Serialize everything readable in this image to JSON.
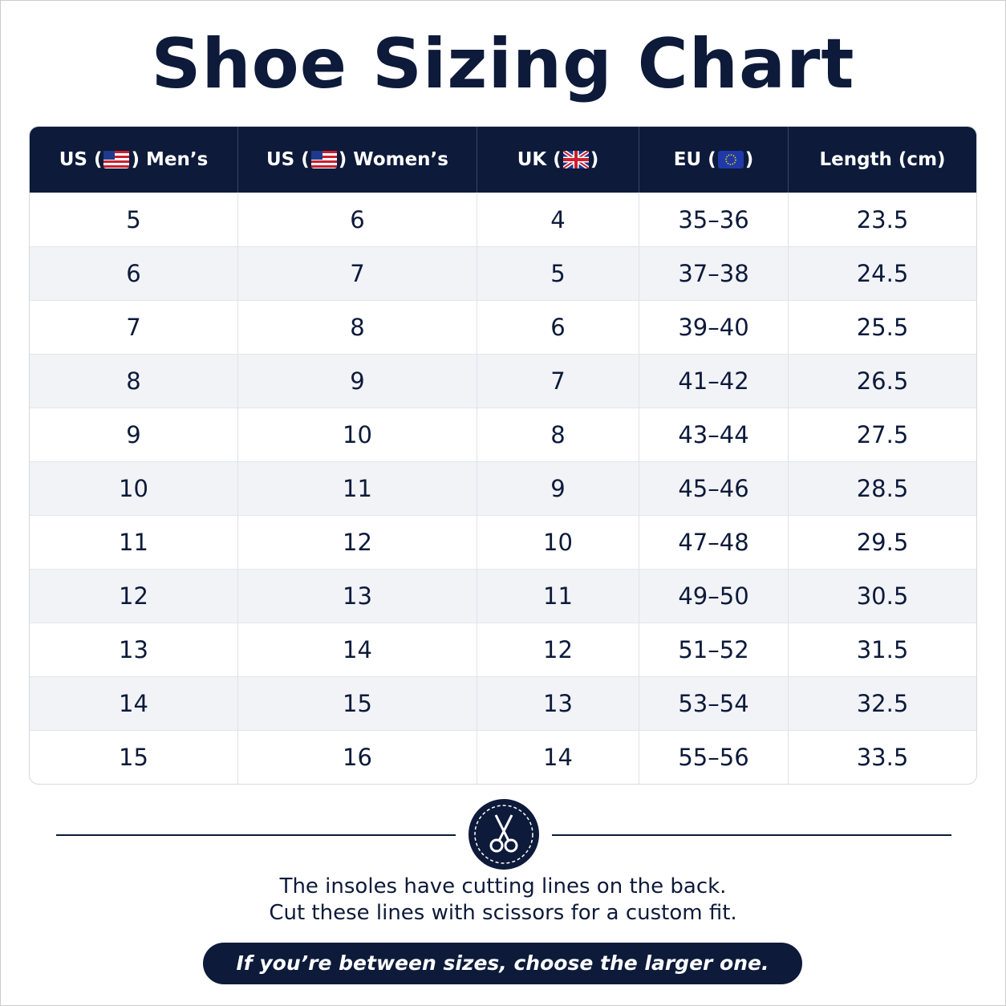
{
  "title": "Shoe Sizing Chart",
  "table": {
    "headers": [
      {
        "before": "US (",
        "after": ") Men’s"
      },
      {
        "before": "US (",
        "after": ") Women’s"
      },
      {
        "before": "UK (",
        "after": ")"
      },
      {
        "before": "EU (",
        "after": ")"
      },
      {
        "before": "Length (cm)"
      }
    ],
    "rows": [
      [
        5,
        6,
        4,
        "35–36",
        23.5
      ],
      [
        6,
        7,
        5,
        "37–38",
        24.5
      ],
      [
        7,
        8,
        6,
        "39–40",
        25.5
      ],
      [
        8,
        9,
        7,
        "41–42",
        26.5
      ],
      [
        9,
        10,
        8,
        "43–44",
        27.5
      ],
      [
        10,
        11,
        9,
        "45–46",
        28.5
      ],
      [
        11,
        12,
        10,
        "47–48",
        29.5
      ],
      [
        12,
        13,
        11,
        "49–50",
        30.5
      ],
      [
        13,
        14,
        12,
        "51–52",
        31.5
      ],
      [
        14,
        15,
        13,
        "53–54",
        32.5
      ],
      [
        15,
        16,
        14,
        "55–56",
        33.5
      ]
    ]
  },
  "note": {
    "lines": [
      "The insoles have cutting lines on the back.",
      "Cut these lines with scissors for a custom fit."
    ],
    "callout": "If you’re between sizes, choose the larger one."
  }
}
